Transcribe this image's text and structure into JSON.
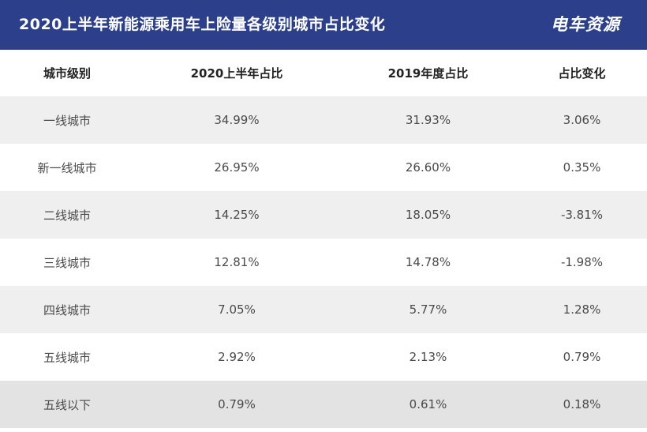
{
  "title": "2020上半年新能源乘用车上险量各级别城市占比变化",
  "brand": "电车资源",
  "colors": {
    "header_bg": "#2b3f8a",
    "header_text": "#ffffff",
    "row_shade": "#efefef",
    "row_plain": "#ffffff"
  },
  "chart_data": {
    "type": "table",
    "title": "2020上半年新能源乘用车上险量各级别城市占比变化",
    "columns": [
      "城市级别",
      "2020上半年占比",
      "2019年度占比",
      "占比变化"
    ],
    "rows": [
      [
        "一线城市",
        "34.99%",
        "31.93%",
        "3.06%"
      ],
      [
        "新一线城市",
        "26.95%",
        "26.60%",
        "0.35%"
      ],
      [
        "二线城市",
        "14.25%",
        "18.05%",
        "-3.81%"
      ],
      [
        "三线城市",
        "12.81%",
        "14.78%",
        "-1.98%"
      ],
      [
        "四线城市",
        "7.05%",
        "5.77%",
        "1.28%"
      ],
      [
        "五线城市",
        "2.92%",
        "2.13%",
        "0.79%"
      ],
      [
        "五线以下",
        "0.79%",
        "0.61%",
        "0.18%"
      ]
    ]
  }
}
